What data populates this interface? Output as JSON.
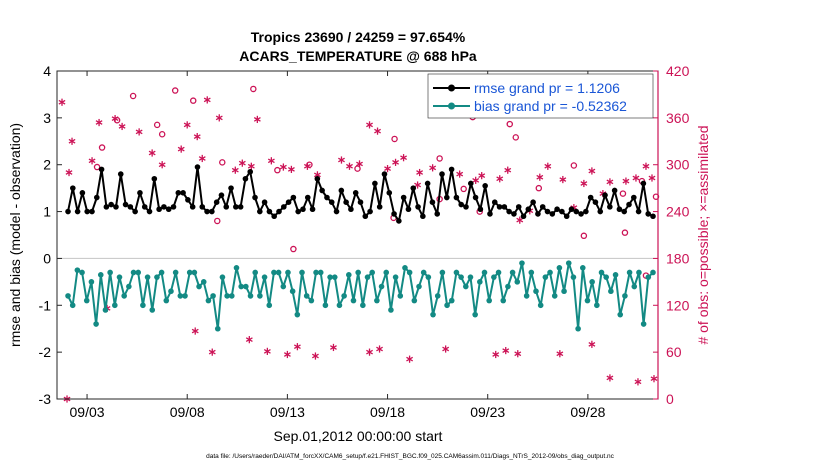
{
  "chart_data": {
    "type": "line",
    "title": "Tropics 23690 / 24259 = 97.654%",
    "subtitle": "ACARS_TEMPERATURE @ 688 hPa",
    "xlabel": "Sep.01,2012 00:00:00 start",
    "ylabel_left": "rmse and bias (model - observation)",
    "ylabel_right": "# of obs: o=possible; ×=assimilated",
    "footer": "data file: /Users/raeder/DAI/ATM_forcXX/CAM6_setup/f.e21.FHIST_BGC.f09_025.CAM6assim.011/Diags_NTrS_2012-09/obs_diag_output.nc",
    "x_range_days": [
      0.5,
      30.5
    ],
    "x_ticks": [
      {
        "day": 2,
        "label": "09/03"
      },
      {
        "day": 7,
        "label": "09/08"
      },
      {
        "day": 12,
        "label": "09/13"
      },
      {
        "day": 17,
        "label": "09/18"
      },
      {
        "day": 22,
        "label": "09/23"
      },
      {
        "day": 27,
        "label": "09/28"
      }
    ],
    "ylim_left": [
      -3,
      4
    ],
    "y_ticks_left": [
      -3,
      -2,
      -1,
      0,
      1,
      2,
      3,
      4
    ],
    "ylim_right": [
      0,
      420
    ],
    "y_ticks_right": [
      0,
      60,
      120,
      180,
      240,
      300,
      360,
      420
    ],
    "legend_location": "top-right",
    "legend": [
      {
        "name": "rmse grand pr = 1.1206",
        "color": "#000000",
        "series": "rmse"
      },
      {
        "name": "bias grand pr = -0.52362",
        "color": "#138a84",
        "series": "bias"
      }
    ],
    "colors": {
      "rmse": "#000000",
      "bias": "#138a84",
      "obs": "#cc1356",
      "zero_line": "#cccccc"
    },
    "series": [
      {
        "name": "rmse",
        "color": "#000000",
        "values": [
          1.0,
          1.5,
          1.0,
          1.4,
          1.0,
          1.0,
          1.3,
          1.9,
          1.1,
          1.15,
          1.1,
          1.8,
          1.15,
          1.1,
          1.0,
          1.4,
          1.1,
          1.0,
          1.7,
          1.05,
          1.1,
          1.05,
          1.1,
          1.4,
          1.4,
          1.25,
          1.1,
          1.95,
          1.1,
          1.0,
          1.0,
          1.2,
          1.35,
          1.1,
          1.5,
          1.1,
          1.1,
          1.7,
          1.85,
          1.3,
          1.0,
          1.2,
          1.0,
          0.9,
          1.0,
          1.1,
          1.2,
          1.3,
          1.0,
          1.05,
          1.3,
          1.05,
          1.7,
          1.45,
          1.3,
          1.2,
          1.0,
          1.45,
          1.2,
          1.05,
          1.4,
          1.2,
          0.9,
          1.0,
          1.6,
          1.1,
          1.8,
          1.4,
          0.95,
          0.8,
          1.3,
          1.05,
          1.5,
          1.1,
          0.9,
          1.6,
          1.2,
          0.95,
          1.8,
          1.3,
          1.9,
          1.3,
          1.15,
          1.1,
          1.6,
          1.3,
          1.05,
          1.55,
          0.95,
          1.2,
          1.1,
          1.1,
          1.0,
          0.95,
          1.1,
          0.9,
          1.05,
          1.2,
          0.95,
          1.1,
          1.0,
          0.95,
          1.05,
          1.0,
          0.9,
          1.05,
          1.0,
          0.95,
          1.0,
          1.3,
          1.2,
          1.0,
          1.35,
          1.1,
          1.45,
          1.05,
          1.0,
          1.15,
          1.3,
          1.0,
          1.6,
          0.95,
          0.9
        ]
      },
      {
        "name": "bias",
        "color": "#138a84",
        "values": [
          -0.8,
          -1.0,
          -0.25,
          -0.3,
          -0.9,
          -0.5,
          -1.4,
          -0.35,
          -1.1,
          -0.3,
          -1.0,
          -0.4,
          -0.8,
          -0.6,
          -0.3,
          -0.3,
          -1.0,
          -0.4,
          -1.1,
          -0.4,
          -0.3,
          -0.9,
          -0.7,
          -0.3,
          -0.8,
          -0.8,
          -0.3,
          -0.3,
          -0.6,
          -0.5,
          -0.9,
          -0.8,
          -1.5,
          -0.4,
          -0.8,
          -0.8,
          -0.2,
          -0.6,
          -0.6,
          -0.8,
          -0.3,
          -0.8,
          -0.4,
          -1.0,
          -0.3,
          -0.3,
          -0.6,
          -0.3,
          -0.7,
          -1.2,
          -0.3,
          -0.8,
          -0.9,
          -0.3,
          -0.3,
          -1.0,
          -0.4,
          -0.4,
          -1.0,
          -0.8,
          -0.35,
          -0.9,
          -0.3,
          -1.0,
          -0.4,
          -0.3,
          -0.9,
          -0.6,
          -0.3,
          -1.1,
          -0.4,
          -0.8,
          -0.2,
          -0.3,
          -0.9,
          -0.6,
          -0.3,
          -0.4,
          -1.2,
          -0.8,
          -0.3,
          -1.0,
          -0.9,
          -0.3,
          -0.4,
          -0.6,
          -0.4,
          -1.2,
          -0.5,
          -0.3,
          -0.9,
          -0.4,
          -0.3,
          -0.9,
          -0.6,
          -0.3,
          -0.5,
          -0.1,
          -0.8,
          -0.3,
          -0.7,
          -1.0,
          -0.4,
          -0.3,
          -0.8,
          -0.2,
          -0.7,
          -0.1,
          -0.4,
          -1.5,
          -0.2,
          -0.9,
          -0.5,
          -1.0,
          -0.3,
          -0.4,
          -0.7,
          -0.35,
          -1.2,
          -0.8,
          -0.3,
          -0.6,
          -0.3,
          -1.4,
          -0.4,
          -0.3
        ]
      },
      {
        "name": "obs possible (o)",
        "color": "#cc1356",
        "x": [
          2.5,
          2.75,
          3.5,
          4.3,
          5.5,
          5.75,
          6.4,
          7.3,
          8.75,
          10.3,
          11.5,
          13.1,
          15.5,
          17.35,
          19.6,
          20.8,
          21.25,
          23.1,
          23.4,
          24.55,
          26.3,
          28.75,
          29.7,
          30.4,
          8.5,
          12.3,
          17.3,
          19.6,
          26.8,
          28.85,
          21.6,
          29.9
        ],
        "values": [
          297,
          322,
          357,
          388,
          351,
          339,
          395,
          382,
          303,
          397,
          293,
          300,
          295,
          333,
          308,
          269,
          361,
          352,
          335,
          270,
          299,
          263,
          279,
          259,
          228,
          192,
          232,
          256,
          209,
          213,
          240,
          158
        ]
      },
      {
        "name": "obs assimilated (×)",
        "color": "#cc1356",
        "x": [
          0.75,
          1.25,
          2.25,
          2.6,
          3.4,
          3.75,
          4.6,
          5.25,
          5.75,
          6.7,
          7.0,
          7.5,
          7.75,
          8.0,
          8.6,
          9.4,
          9.75,
          10.2,
          10.5,
          11.2,
          11.8,
          12.2,
          13.0,
          13.5,
          14.7,
          15.1,
          15.6,
          16.1,
          16.5,
          17.0,
          17.4,
          17.8,
          18.5,
          18.6,
          19.25,
          20.0,
          20.6,
          21.4,
          21.7,
          22.6,
          23.0,
          23.6,
          24.1,
          24.6,
          25.0,
          25.75,
          26.3,
          26.8,
          27.2,
          27.75,
          28.1,
          28.9,
          29.4,
          29.9,
          30.2,
          1.1,
          3.0,
          7.4,
          8.25,
          10.1,
          11.0,
          12.0,
          12.5,
          13.4,
          14.3,
          16.1,
          16.6,
          18.1,
          19.9,
          22.4,
          22.9,
          23.5,
          25.6,
          27.2,
          28.1,
          29.5,
          30.3,
          1.0
        ],
        "values": [
          380,
          330,
          305,
          354,
          359,
          349,
          342,
          315,
          300,
          320,
          351,
          336,
          308,
          383,
          360,
          293,
          302,
          298,
          358,
          305,
          297,
          294,
          298,
          287,
          306,
          298,
          301,
          351,
          343,
          295,
          303,
          309,
          274,
          290,
          296,
          380,
          288,
          280,
          286,
          282,
          293,
          229,
          241,
          284,
          298,
          281,
          245,
          276,
          292,
          263,
          278,
          279,
          283,
          298,
          283,
          290,
          116,
          87,
          60,
          76,
          61,
          57,
          67,
          55,
          66,
          60,
          64,
          51,
          64,
          57,
          62,
          58,
          58,
          70,
          27,
          22,
          26,
          0
        ]
      }
    ]
  }
}
